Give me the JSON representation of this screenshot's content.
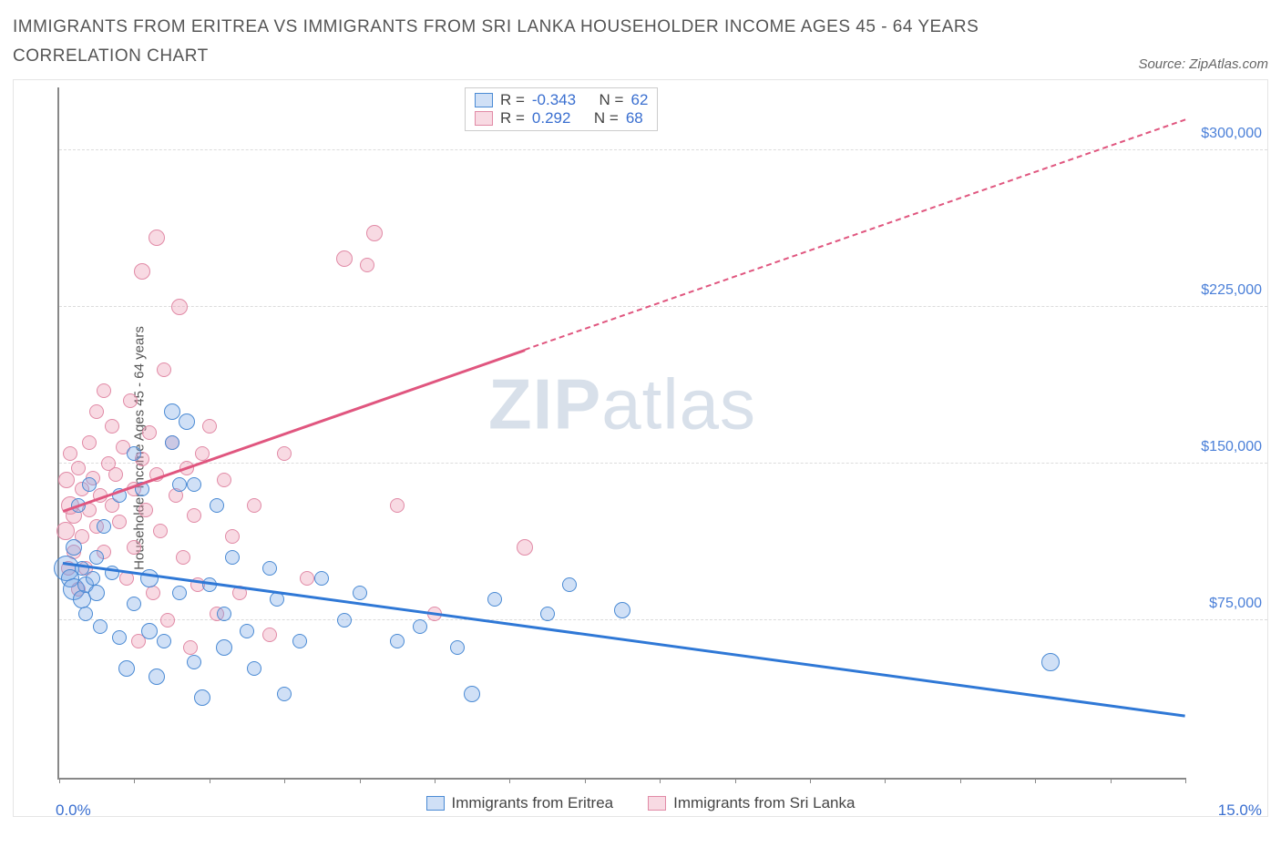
{
  "title": "IMMIGRANTS FROM ERITREA VS IMMIGRANTS FROM SRI LANKA HOUSEHOLDER INCOME AGES 45 - 64 YEARS CORRELATION CHART",
  "source": "Source: ZipAtlas.com",
  "y_axis_label": "Householder Income Ages 45 - 64 years",
  "watermark_bold": "ZIP",
  "watermark_rest": "atlas",
  "colors": {
    "series_a_fill": "rgba(120,165,230,0.35)",
    "series_a_stroke": "#4a8ad4",
    "series_a_line": "#2f78d6",
    "series_b_fill": "rgba(235,150,175,0.35)",
    "series_b_stroke": "#e18aa6",
    "series_b_line": "#e0567f",
    "tick_text": "#3a6fd0",
    "grid": "#dcdcdc"
  },
  "chart": {
    "type": "scatter",
    "xlim": [
      0,
      15
    ],
    "ylim": [
      0,
      330000
    ],
    "y_ticks": [
      {
        "v": 75000,
        "label": "$75,000"
      },
      {
        "v": 150000,
        "label": "$150,000"
      },
      {
        "v": 225000,
        "label": "$225,000"
      },
      {
        "v": 300000,
        "label": "$300,000"
      }
    ],
    "x_tick_positions": [
      0,
      1,
      2,
      3,
      4,
      5,
      6,
      7,
      8,
      9,
      10,
      11,
      12,
      13,
      14,
      15
    ],
    "x_min_label": "0.0%",
    "x_max_label": "15.0%"
  },
  "stats": {
    "series_a": {
      "R_label": "R = ",
      "R": "-0.343",
      "N_label": "N = ",
      "N": "62"
    },
    "series_b": {
      "R_label": "R = ",
      "R": " 0.292",
      "N_label": "N = ",
      "N": "68"
    }
  },
  "legend": {
    "series_a": "Immigrants from Eritrea",
    "series_b": "Immigrants from Sri Lanka"
  },
  "trend_lines": {
    "a_solid": {
      "x1": 0.05,
      "y1": 103000,
      "x2": 15,
      "y2": 30000
    },
    "b_solid": {
      "x1": 0.05,
      "y1": 128000,
      "x2": 6.2,
      "y2": 205000
    },
    "b_dashed": {
      "x1": 6.2,
      "y1": 205000,
      "x2": 15,
      "y2": 315000
    }
  },
  "series_a_points": [
    {
      "x": 0.1,
      "y": 100000,
      "r": 14
    },
    {
      "x": 0.15,
      "y": 95000,
      "r": 10
    },
    {
      "x": 0.2,
      "y": 110000,
      "r": 9
    },
    {
      "x": 0.2,
      "y": 90000,
      "r": 12
    },
    {
      "x": 0.25,
      "y": 130000,
      "r": 8
    },
    {
      "x": 0.3,
      "y": 85000,
      "r": 10
    },
    {
      "x": 0.3,
      "y": 100000,
      "r": 8
    },
    {
      "x": 0.35,
      "y": 92000,
      "r": 9
    },
    {
      "x": 0.35,
      "y": 78000,
      "r": 8
    },
    {
      "x": 0.4,
      "y": 140000,
      "r": 8
    },
    {
      "x": 0.45,
      "y": 95000,
      "r": 8
    },
    {
      "x": 0.5,
      "y": 88000,
      "r": 9
    },
    {
      "x": 0.5,
      "y": 105000,
      "r": 8
    },
    {
      "x": 0.55,
      "y": 72000,
      "r": 8
    },
    {
      "x": 0.6,
      "y": 120000,
      "r": 8
    },
    {
      "x": 0.7,
      "y": 98000,
      "r": 8
    },
    {
      "x": 0.8,
      "y": 135000,
      "r": 8
    },
    {
      "x": 0.8,
      "y": 67000,
      "r": 8
    },
    {
      "x": 0.9,
      "y": 52000,
      "r": 9
    },
    {
      "x": 1.0,
      "y": 155000,
      "r": 8
    },
    {
      "x": 1.0,
      "y": 83000,
      "r": 8
    },
    {
      "x": 1.1,
      "y": 138000,
      "r": 8
    },
    {
      "x": 1.2,
      "y": 95000,
      "r": 10
    },
    {
      "x": 1.2,
      "y": 70000,
      "r": 9
    },
    {
      "x": 1.3,
      "y": 48000,
      "r": 9
    },
    {
      "x": 1.4,
      "y": 65000,
      "r": 8
    },
    {
      "x": 1.5,
      "y": 175000,
      "r": 9
    },
    {
      "x": 1.5,
      "y": 160000,
      "r": 8
    },
    {
      "x": 1.6,
      "y": 88000,
      "r": 8
    },
    {
      "x": 1.6,
      "y": 140000,
      "r": 8
    },
    {
      "x": 1.7,
      "y": 170000,
      "r": 9
    },
    {
      "x": 1.8,
      "y": 55000,
      "r": 8
    },
    {
      "x": 1.8,
      "y": 140000,
      "r": 8
    },
    {
      "x": 1.9,
      "y": 38000,
      "r": 9
    },
    {
      "x": 2.0,
      "y": 92000,
      "r": 8
    },
    {
      "x": 2.1,
      "y": 130000,
      "r": 8
    },
    {
      "x": 2.2,
      "y": 78000,
      "r": 8
    },
    {
      "x": 2.2,
      "y": 62000,
      "r": 9
    },
    {
      "x": 2.3,
      "y": 105000,
      "r": 8
    },
    {
      "x": 2.5,
      "y": 70000,
      "r": 8
    },
    {
      "x": 2.6,
      "y": 52000,
      "r": 8
    },
    {
      "x": 2.8,
      "y": 100000,
      "r": 8
    },
    {
      "x": 2.9,
      "y": 85000,
      "r": 8
    },
    {
      "x": 3.0,
      "y": 40000,
      "r": 8
    },
    {
      "x": 3.2,
      "y": 65000,
      "r": 8
    },
    {
      "x": 3.5,
      "y": 95000,
      "r": 8
    },
    {
      "x": 3.8,
      "y": 75000,
      "r": 8
    },
    {
      "x": 4.0,
      "y": 88000,
      "r": 8
    },
    {
      "x": 4.5,
      "y": 65000,
      "r": 8
    },
    {
      "x": 4.8,
      "y": 72000,
      "r": 8
    },
    {
      "x": 5.3,
      "y": 62000,
      "r": 8
    },
    {
      "x": 5.5,
      "y": 40000,
      "r": 9
    },
    {
      "x": 5.8,
      "y": 85000,
      "r": 8
    },
    {
      "x": 6.5,
      "y": 78000,
      "r": 8
    },
    {
      "x": 6.8,
      "y": 92000,
      "r": 8
    },
    {
      "x": 7.5,
      "y": 80000,
      "r": 9
    },
    {
      "x": 13.2,
      "y": 55000,
      "r": 10
    }
  ],
  "series_b_points": [
    {
      "x": 0.08,
      "y": 118000,
      "r": 10
    },
    {
      "x": 0.1,
      "y": 142000,
      "r": 9
    },
    {
      "x": 0.12,
      "y": 100000,
      "r": 8
    },
    {
      "x": 0.15,
      "y": 130000,
      "r": 10
    },
    {
      "x": 0.15,
      "y": 155000,
      "r": 8
    },
    {
      "x": 0.2,
      "y": 125000,
      "r": 9
    },
    {
      "x": 0.2,
      "y": 108000,
      "r": 8
    },
    {
      "x": 0.25,
      "y": 148000,
      "r": 8
    },
    {
      "x": 0.25,
      "y": 90000,
      "r": 8
    },
    {
      "x": 0.3,
      "y": 138000,
      "r": 8
    },
    {
      "x": 0.3,
      "y": 115000,
      "r": 8
    },
    {
      "x": 0.35,
      "y": 100000,
      "r": 8
    },
    {
      "x": 0.4,
      "y": 160000,
      "r": 8
    },
    {
      "x": 0.4,
      "y": 128000,
      "r": 8
    },
    {
      "x": 0.45,
      "y": 143000,
      "r": 8
    },
    {
      "x": 0.5,
      "y": 175000,
      "r": 8
    },
    {
      "x": 0.5,
      "y": 120000,
      "r": 8
    },
    {
      "x": 0.55,
      "y": 135000,
      "r": 8
    },
    {
      "x": 0.6,
      "y": 185000,
      "r": 8
    },
    {
      "x": 0.6,
      "y": 108000,
      "r": 8
    },
    {
      "x": 0.65,
      "y": 150000,
      "r": 8
    },
    {
      "x": 0.7,
      "y": 130000,
      "r": 8
    },
    {
      "x": 0.7,
      "y": 168000,
      "r": 8
    },
    {
      "x": 0.75,
      "y": 145000,
      "r": 8
    },
    {
      "x": 0.8,
      "y": 122000,
      "r": 8
    },
    {
      "x": 0.85,
      "y": 158000,
      "r": 8
    },
    {
      "x": 0.9,
      "y": 95000,
      "r": 8
    },
    {
      "x": 0.95,
      "y": 180000,
      "r": 8
    },
    {
      "x": 1.0,
      "y": 138000,
      "r": 8
    },
    {
      "x": 1.0,
      "y": 110000,
      "r": 8
    },
    {
      "x": 1.05,
      "y": 65000,
      "r": 8
    },
    {
      "x": 1.1,
      "y": 152000,
      "r": 8
    },
    {
      "x": 1.1,
      "y": 242000,
      "r": 9
    },
    {
      "x": 1.15,
      "y": 128000,
      "r": 8
    },
    {
      "x": 1.2,
      "y": 165000,
      "r": 8
    },
    {
      "x": 1.25,
      "y": 88000,
      "r": 8
    },
    {
      "x": 1.3,
      "y": 145000,
      "r": 8
    },
    {
      "x": 1.3,
      "y": 258000,
      "r": 9
    },
    {
      "x": 1.35,
      "y": 118000,
      "r": 8
    },
    {
      "x": 1.4,
      "y": 195000,
      "r": 8
    },
    {
      "x": 1.45,
      "y": 75000,
      "r": 8
    },
    {
      "x": 1.5,
      "y": 160000,
      "r": 8
    },
    {
      "x": 1.55,
      "y": 135000,
      "r": 8
    },
    {
      "x": 1.6,
      "y": 225000,
      "r": 9
    },
    {
      "x": 1.65,
      "y": 105000,
      "r": 8
    },
    {
      "x": 1.7,
      "y": 148000,
      "r": 8
    },
    {
      "x": 1.75,
      "y": 62000,
      "r": 8
    },
    {
      "x": 1.8,
      "y": 125000,
      "r": 8
    },
    {
      "x": 1.85,
      "y": 92000,
      "r": 8
    },
    {
      "x": 1.9,
      "y": 155000,
      "r": 8
    },
    {
      "x": 2.0,
      "y": 168000,
      "r": 8
    },
    {
      "x": 2.1,
      "y": 78000,
      "r": 8
    },
    {
      "x": 2.2,
      "y": 142000,
      "r": 8
    },
    {
      "x": 2.3,
      "y": 115000,
      "r": 8
    },
    {
      "x": 2.4,
      "y": 88000,
      "r": 8
    },
    {
      "x": 2.6,
      "y": 130000,
      "r": 8
    },
    {
      "x": 2.8,
      "y": 68000,
      "r": 8
    },
    {
      "x": 3.0,
      "y": 155000,
      "r": 8
    },
    {
      "x": 3.3,
      "y": 95000,
      "r": 8
    },
    {
      "x": 3.8,
      "y": 248000,
      "r": 9
    },
    {
      "x": 4.1,
      "y": 245000,
      "r": 8
    },
    {
      "x": 4.2,
      "y": 260000,
      "r": 9
    },
    {
      "x": 4.5,
      "y": 130000,
      "r": 8
    },
    {
      "x": 5.0,
      "y": 78000,
      "r": 8
    },
    {
      "x": 6.2,
      "y": 110000,
      "r": 9
    }
  ]
}
